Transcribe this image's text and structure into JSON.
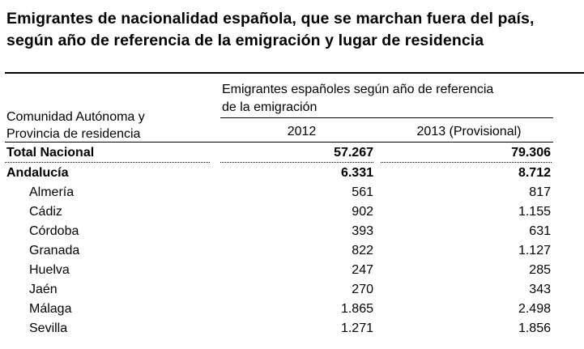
{
  "title": "Emigrantes de nacionalidad española,  que se marchan fuera del país, según año de referencia de la emigración y lugar de residencia",
  "header": {
    "row_label_line1": "Comunidad Autónoma y",
    "row_label_line2": "Provincia de residencia",
    "group_label_line1": "Emigrantes españoles según año de referencia",
    "group_label_line2": "de la emigración",
    "col1": "2012",
    "col2": "2013 (Provisional)"
  },
  "rows": [
    {
      "name": "Total Nacional",
      "v2012": "57.267",
      "v2013": "79.306"
    },
    {
      "name": "Andalucía",
      "v2012": "6.331",
      "v2013": "8.712"
    },
    {
      "name": "Almería",
      "v2012": "561",
      "v2013": "817"
    },
    {
      "name": "Cádiz",
      "v2012": "902",
      "v2013": "1.155"
    },
    {
      "name": "Córdoba",
      "v2012": "393",
      "v2013": "631"
    },
    {
      "name": "Granada",
      "v2012": "822",
      "v2013": "1.127"
    },
    {
      "name": "Huelva",
      "v2012": "247",
      "v2013": "285"
    },
    {
      "name": "Jaén",
      "v2012": "270",
      "v2013": "343"
    },
    {
      "name": "Málaga",
      "v2012": "1.865",
      "v2013": "2.498"
    },
    {
      "name": "Sevilla",
      "v2012": "1.271",
      "v2013": "1.856"
    }
  ]
}
